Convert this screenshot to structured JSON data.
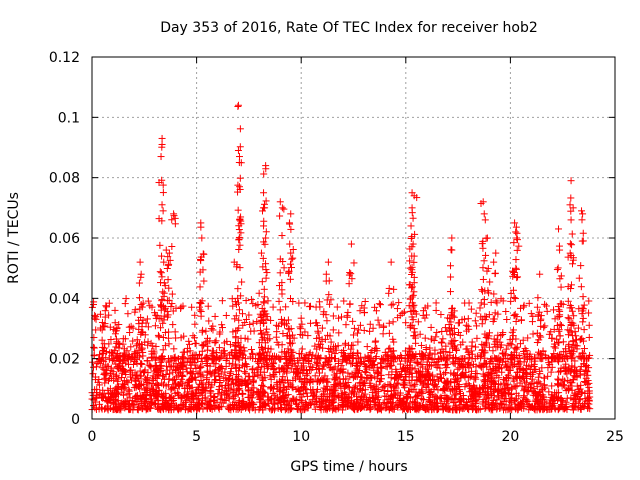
{
  "chart_data": {
    "type": "scatter",
    "title": "Day 353 of 2016, Rate Of TEC Index for receiver hob2",
    "xlabel": "GPS time / hours",
    "ylabel": "ROTI / TECUs",
    "xlim": [
      0,
      25
    ],
    "ylim": [
      0,
      0.12
    ],
    "x_ticks": [
      "0",
      "5",
      "10",
      "15",
      "20",
      "25"
    ],
    "y_ticks": [
      "0",
      "0.02",
      "0.04",
      "0.06",
      "0.08",
      "0.1",
      "0.12"
    ],
    "grid": true,
    "legend": "none",
    "marker": "plus",
    "color": "#ff0000",
    "series": [
      {
        "x_range": [
          0,
          23.8
        ],
        "typical_range": [
          0.003,
          0.02
        ],
        "notable_points": [
          {
            "x": 3.35,
            "y": 0.093
          },
          {
            "x": 3.35,
            "y": 0.091
          },
          {
            "x": 3.3,
            "y": 0.087
          },
          {
            "x": 3.4,
            "y": 0.069
          },
          {
            "x": 3.55,
            "y": 0.056
          },
          {
            "x": 3.7,
            "y": 0.055
          },
          {
            "x": 3.9,
            "y": 0.068
          },
          {
            "x": 7.0,
            "y": 0.104
          },
          {
            "x": 7.0,
            "y": 0.089
          },
          {
            "x": 7.05,
            "y": 0.087
          },
          {
            "x": 7.05,
            "y": 0.077
          },
          {
            "x": 7.05,
            "y": 0.066
          },
          {
            "x": 8.3,
            "y": 0.084
          },
          {
            "x": 8.2,
            "y": 0.075
          },
          {
            "x": 8.25,
            "y": 0.07
          },
          {
            "x": 8.2,
            "y": 0.064
          },
          {
            "x": 8.3,
            "y": 0.06
          },
          {
            "x": 9.0,
            "y": 0.072
          },
          {
            "x": 9.1,
            "y": 0.07
          },
          {
            "x": 9.5,
            "y": 0.068
          },
          {
            "x": 9.45,
            "y": 0.058
          },
          {
            "x": 9.5,
            "y": 0.055
          },
          {
            "x": 5.2,
            "y": 0.065
          },
          {
            "x": 5.25,
            "y": 0.06
          },
          {
            "x": 11.3,
            "y": 0.052
          },
          {
            "x": 12.4,
            "y": 0.058
          },
          {
            "x": 14.3,
            "y": 0.052
          },
          {
            "x": 15.3,
            "y": 0.075
          },
          {
            "x": 15.4,
            "y": 0.074
          },
          {
            "x": 15.3,
            "y": 0.07
          },
          {
            "x": 15.25,
            "y": 0.064
          },
          {
            "x": 15.35,
            "y": 0.058
          },
          {
            "x": 15.4,
            "y": 0.054
          },
          {
            "x": 17.2,
            "y": 0.06
          },
          {
            "x": 17.2,
            "y": 0.056
          },
          {
            "x": 18.7,
            "y": 0.072
          },
          {
            "x": 18.75,
            "y": 0.068
          },
          {
            "x": 18.8,
            "y": 0.066
          },
          {
            "x": 18.9,
            "y": 0.06
          },
          {
            "x": 19.3,
            "y": 0.055
          },
          {
            "x": 19.2,
            "y": 0.052
          },
          {
            "x": 20.2,
            "y": 0.065
          },
          {
            "x": 20.25,
            "y": 0.062
          },
          {
            "x": 20.3,
            "y": 0.06
          },
          {
            "x": 20.1,
            "y": 0.049
          },
          {
            "x": 21.4,
            "y": 0.048
          },
          {
            "x": 22.9,
            "y": 0.079
          },
          {
            "x": 22.85,
            "y": 0.071
          },
          {
            "x": 23.0,
            "y": 0.07
          },
          {
            "x": 22.9,
            "y": 0.066
          },
          {
            "x": 23.4,
            "y": 0.069
          },
          {
            "x": 23.45,
            "y": 0.068
          },
          {
            "x": 22.3,
            "y": 0.063
          },
          {
            "x": 22.35,
            "y": 0.056
          },
          {
            "x": 2.3,
            "y": 0.052
          },
          {
            "x": 2.35,
            "y": 0.048
          },
          {
            "x": 1.1,
            "y": 0.036
          },
          {
            "x": 0.5,
            "y": 0.032
          },
          {
            "x": 6.8,
            "y": 0.052
          },
          {
            "x": 8.1,
            "y": 0.055
          }
        ]
      }
    ]
  }
}
